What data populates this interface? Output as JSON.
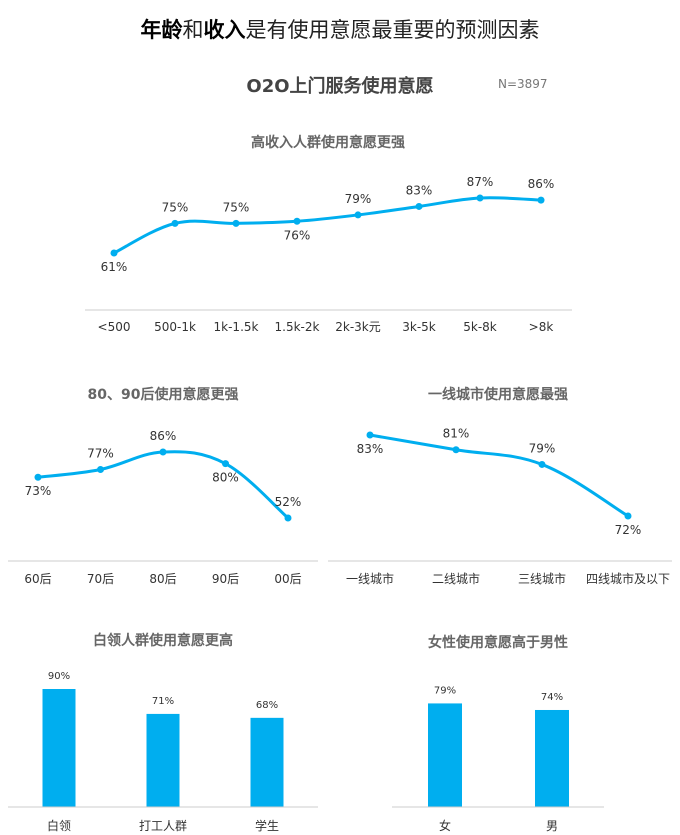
{
  "header": {
    "headline_parts": [
      {
        "text": "年龄",
        "bold": true
      },
      {
        "text": "和",
        "bold": false
      },
      {
        "text": "收入",
        "bold": true
      },
      {
        "text": "是有使用意愿最重要的预测因素",
        "bold": false
      }
    ],
    "main_title": "O2O上门服务使用意愿",
    "sample_size": "N=3897"
  },
  "colors": {
    "series": "#00AEEF",
    "axis": "#CCCCCC"
  },
  "chart_data": [
    {
      "id": "income",
      "type": "line",
      "title": "高收入人群使用意愿更强",
      "categories": [
        "<500",
        "500-1k",
        "1k-1.5k",
        "1.5k-2k",
        "2k-3k元",
        "3k-5k",
        "5k-8k",
        ">8k"
      ],
      "values": [
        61,
        75,
        75,
        76,
        79,
        83,
        87,
        86
      ],
      "labels": [
        "61%",
        "75%",
        "75%",
        "76%",
        "79%",
        "83%",
        "87%",
        "86%"
      ],
      "unit": "%",
      "ylim": [
        55,
        95
      ],
      "grid": false,
      "legend": "none"
    },
    {
      "id": "age",
      "type": "line",
      "title": "80、90后使用意愿更强",
      "categories": [
        "60后",
        "70后",
        "80后",
        "90后",
        "00后"
      ],
      "values": [
        73,
        77,
        86,
        80,
        52
      ],
      "labels": [
        "73%",
        "77%",
        "86%",
        "80%",
        "52%"
      ],
      "unit": "%",
      "ylim": [
        45,
        95
      ],
      "grid": false,
      "legend": "none"
    },
    {
      "id": "city",
      "type": "line",
      "title": "一线城市使用意愿最强",
      "categories": [
        "一线城市",
        "二线城市",
        "三线城市",
        "四线城市及以下"
      ],
      "values": [
        83,
        81,
        79,
        72
      ],
      "labels": [
        "83%",
        "81%",
        "79%",
        "72%"
      ],
      "unit": "%",
      "ylim": [
        70,
        85
      ],
      "grid": false,
      "legend": "none"
    },
    {
      "id": "occupation",
      "type": "bar",
      "title": "白领人群使用意愿更高",
      "categories": [
        "白领",
        "打工人群",
        "学生"
      ],
      "values": [
        90,
        71,
        68
      ],
      "labels": [
        "90%",
        "71%",
        "68%"
      ],
      "unit": "%",
      "ylim": [
        0,
        100
      ],
      "grid": false,
      "legend": "none"
    },
    {
      "id": "gender",
      "type": "bar",
      "title": "女性使用意愿高于男性",
      "categories": [
        "女",
        "男"
      ],
      "values": [
        79,
        74
      ],
      "labels": [
        "79%",
        "74%"
      ],
      "unit": "%",
      "ylim": [
        0,
        100
      ],
      "grid": false,
      "legend": "none"
    }
  ]
}
